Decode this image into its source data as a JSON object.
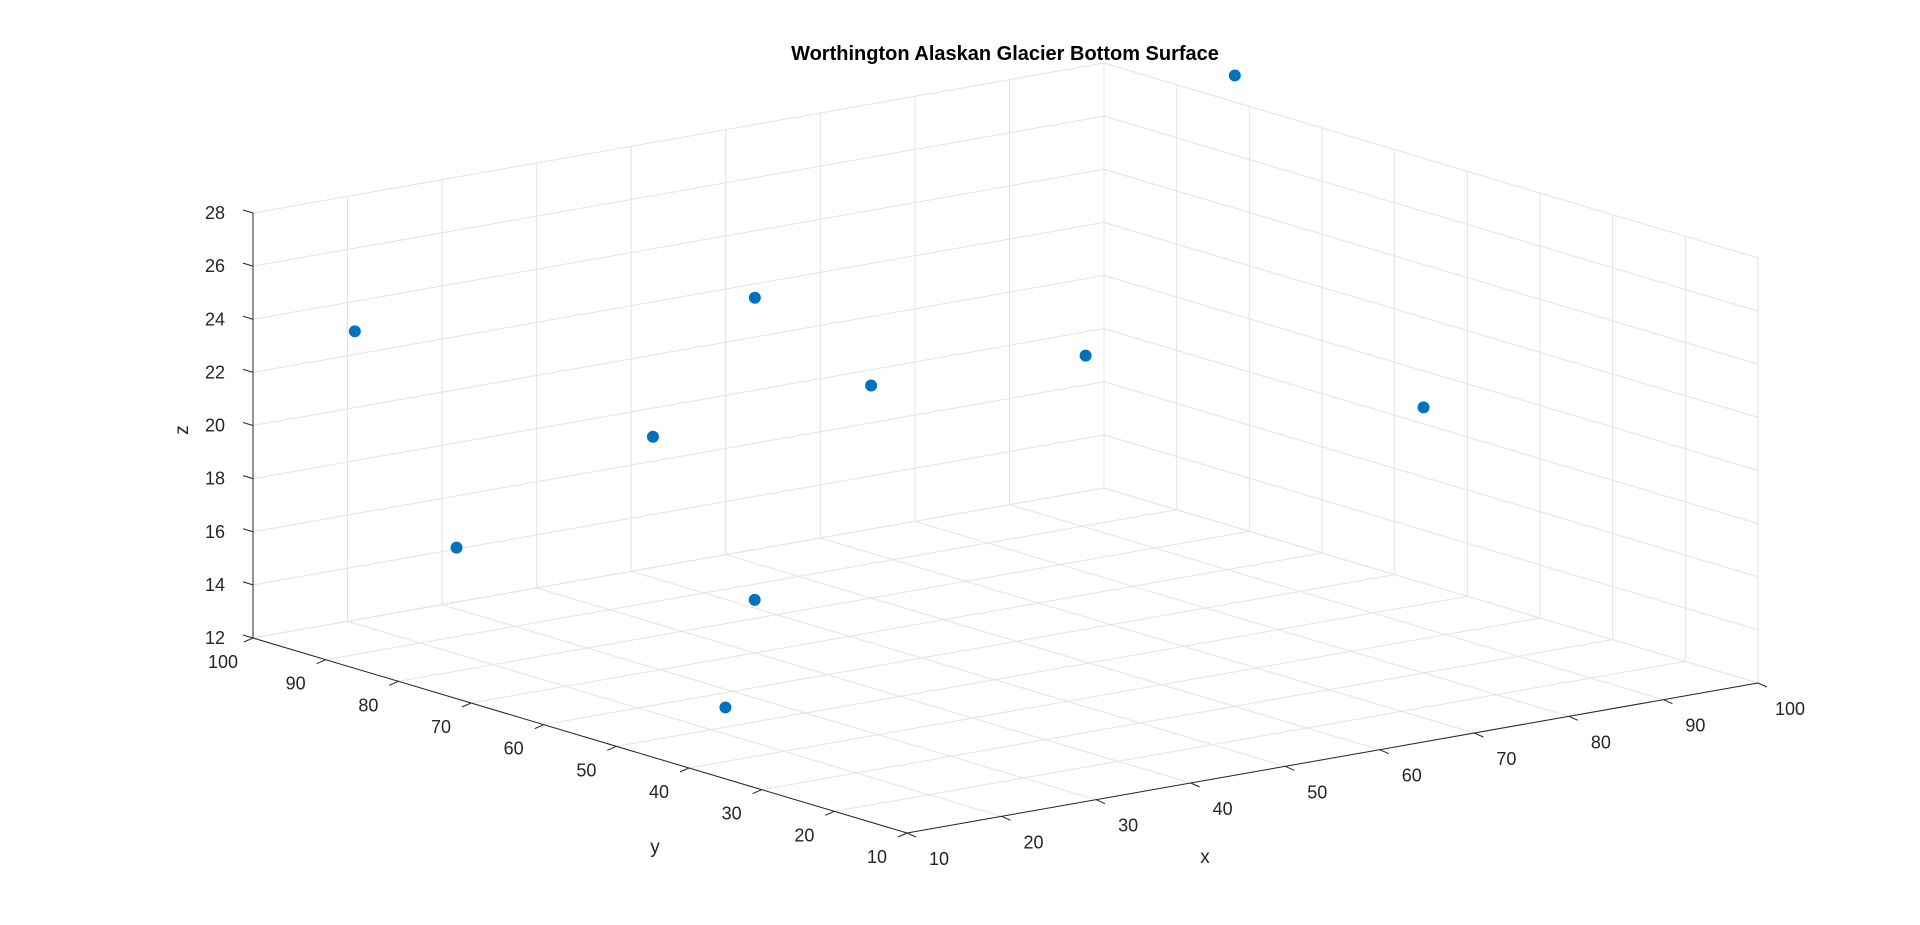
{
  "chart_data": {
    "type": "scatter",
    "subtype": "scatter3d",
    "title": "Worthington Alaskan Glacier Bottom Surface",
    "xlabel": "x",
    "ylabel": "y",
    "zlabel": "z",
    "xlim": [
      10,
      100
    ],
    "ylim": [
      10,
      100
    ],
    "zlim": [
      12,
      28
    ],
    "xticks": [
      "10",
      "20",
      "30",
      "40",
      "50",
      "60",
      "70",
      "80",
      "90",
      "100"
    ],
    "yticks": [
      "10",
      "20",
      "30",
      "40",
      "50",
      "60",
      "70",
      "80",
      "90",
      "100"
    ],
    "zticks": [
      "12",
      "14",
      "16",
      "18",
      "20",
      "22",
      "24",
      "26",
      "28"
    ],
    "grid": true,
    "marker_color": "#0072BD",
    "points": [
      {
        "x": 20,
        "y": 48,
        "z": 13
      },
      {
        "x": 40,
        "y": 70,
        "z": 14
      },
      {
        "x": 80,
        "y": 30,
        "z": 22
      },
      {
        "x": 20,
        "y": 85,
        "z": 16
      },
      {
        "x": 40,
        "y": 84,
        "z": 19
      },
      {
        "x": 60,
        "y": 80,
        "z": 20
      },
      {
        "x": 20,
        "y": 99,
        "z": 23
      },
      {
        "x": 75,
        "y": 70,
        "z": 21
      },
      {
        "x": 60,
        "y": 96,
        "z": 22
      },
      {
        "x": 100,
        "y": 82,
        "z": 29
      }
    ]
  }
}
